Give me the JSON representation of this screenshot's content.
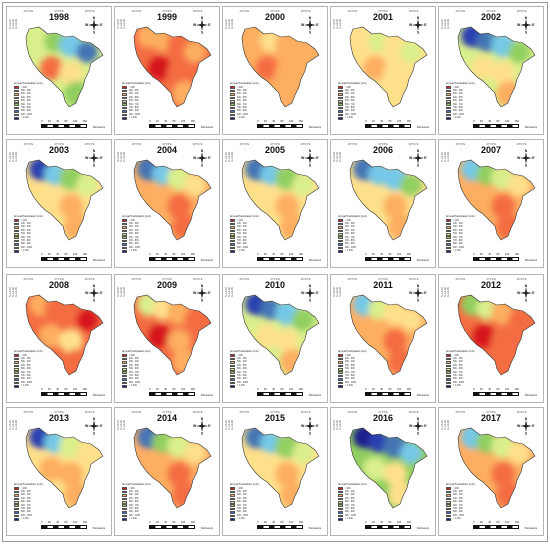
{
  "figure": {
    "map_coords_top": [
      "43°0'0\"E",
      "47°0'0\"E",
      "48°0'0\"E"
    ],
    "map_coords_left": [
      "36°0'0\"N",
      "35°0'0\"N",
      "34°0'0\"N"
    ],
    "compass": {
      "n": "N",
      "s": "S",
      "e": "E",
      "w": "W"
    },
    "scale": {
      "ticks": [
        "0",
        "20",
        "40",
        "80",
        "120",
        "160"
      ],
      "unit": "Kilometers"
    },
    "legend": {
      "title": "Annual Precipitation (mm)",
      "classes": [
        {
          "label": "< 200",
          "color": "#d7191c"
        },
        {
          "label": "200 - 300",
          "color": "#f46d43"
        },
        {
          "label": "300 - 400",
          "color": "#fdae61"
        },
        {
          "label": "400 - 500",
          "color": "#fee08b"
        },
        {
          "label": "500 - 600",
          "color": "#d9ef8b"
        },
        {
          "label": "600 - 700",
          "color": "#91cf60"
        },
        {
          "label": "700 - 800",
          "color": "#74c8e8"
        },
        {
          "label": "800 - 900",
          "color": "#4575b4"
        },
        {
          "label": "900 - 1000",
          "color": "#2c3fb0"
        },
        {
          "label": "> 1,000",
          "color": "#1a1a8c"
        }
      ]
    },
    "panels": [
      {
        "year": "1998",
        "regions": [
          4,
          5,
          6,
          7,
          4,
          1,
          3,
          5
        ]
      },
      {
        "year": "1999",
        "regions": [
          2,
          2,
          1,
          2,
          1,
          0,
          1,
          2
        ]
      },
      {
        "year": "2000",
        "regions": [
          2,
          3,
          2,
          2,
          2,
          1,
          2,
          2
        ]
      },
      {
        "year": "2001",
        "regions": [
          3,
          4,
          3,
          4,
          3,
          2,
          3,
          3
        ]
      },
      {
        "year": "2002",
        "regions": [
          8,
          7,
          6,
          5,
          4,
          3,
          3,
          2
        ]
      },
      {
        "year": "2003",
        "regions": [
          8,
          6,
          5,
          4,
          3,
          3,
          2,
          2
        ]
      },
      {
        "year": "2004",
        "regions": [
          7,
          6,
          4,
          3,
          2,
          2,
          1,
          1
        ]
      },
      {
        "year": "2005",
        "regions": [
          7,
          6,
          5,
          4,
          3,
          3,
          2,
          2
        ]
      },
      {
        "year": "2006",
        "regions": [
          7,
          6,
          6,
          5,
          3,
          3,
          2,
          2
        ]
      },
      {
        "year": "2007",
        "regions": [
          6,
          5,
          4,
          3,
          2,
          2,
          1,
          1
        ]
      },
      {
        "year": "2008",
        "regions": [
          2,
          1,
          1,
          0,
          1,
          2,
          3,
          1
        ]
      },
      {
        "year": "2009",
        "regions": [
          4,
          3,
          2,
          1,
          1,
          0,
          2,
          2
        ]
      },
      {
        "year": "2010",
        "regions": [
          8,
          7,
          6,
          5,
          4,
          3,
          3,
          2
        ]
      },
      {
        "year": "2011",
        "regions": [
          6,
          4,
          3,
          3,
          2,
          2,
          1,
          1
        ]
      },
      {
        "year": "2012",
        "regions": [
          5,
          4,
          2,
          1,
          1,
          0,
          1,
          1
        ]
      },
      {
        "year": "2013",
        "regions": [
          8,
          6,
          4,
          3,
          3,
          2,
          2,
          2
        ]
      },
      {
        "year": "2014",
        "regions": [
          7,
          5,
          4,
          3,
          2,
          2,
          1,
          1
        ]
      },
      {
        "year": "2015",
        "regions": [
          7,
          6,
          5,
          4,
          3,
          3,
          2,
          2
        ]
      },
      {
        "year": "2016",
        "regions": [
          9,
          8,
          7,
          6,
          5,
          4,
          3,
          3
        ]
      },
      {
        "year": "2017",
        "regions": [
          6,
          5,
          4,
          3,
          2,
          2,
          1,
          1
        ]
      }
    ]
  }
}
